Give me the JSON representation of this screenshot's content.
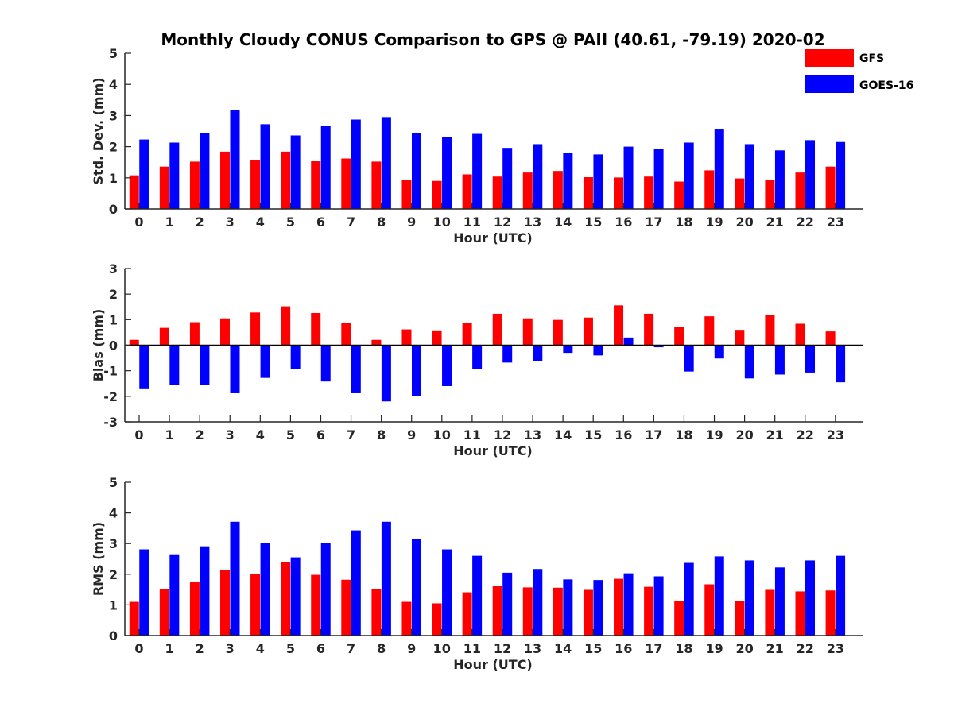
{
  "figure": {
    "title": "Monthly Cloudy CONUS Comparison to GPS @ PAII (40.61, -79.19) 2020-02"
  },
  "legend": {
    "placement": "top-right",
    "entries": [
      {
        "label": "GFS",
        "color": "#ff0000"
      },
      {
        "label": "GOES-16",
        "color": "#0000ff"
      }
    ]
  },
  "chart_data": [
    {
      "type": "bar",
      "xlabel": "Hour (UTC)",
      "ylabel": "Std. Dev. (mm)",
      "ylim": [
        0,
        5
      ],
      "yticks": [
        "0",
        "1",
        "2",
        "3",
        "4",
        "5"
      ],
      "categories": [
        "0",
        "1",
        "2",
        "3",
        "4",
        "5",
        "6",
        "7",
        "8",
        "9",
        "10",
        "11",
        "12",
        "13",
        "14",
        "15",
        "16",
        "17",
        "18",
        "19",
        "20",
        "21",
        "22",
        "23"
      ],
      "series": [
        {
          "name": "GFS",
          "color": "#ff0000",
          "values": [
            1.08,
            1.36,
            1.52,
            1.84,
            1.57,
            1.84,
            1.53,
            1.62,
            1.52,
            0.93,
            0.9,
            1.11,
            1.04,
            1.17,
            1.22,
            1.02,
            1.01,
            1.04,
            0.88,
            1.24,
            0.98,
            0.94,
            1.17,
            1.36
          ]
        },
        {
          "name": "GOES-16",
          "color": "#0000ff",
          "values": [
            2.23,
            2.13,
            2.43,
            3.18,
            2.72,
            2.36,
            2.67,
            2.87,
            2.95,
            2.43,
            2.31,
            2.41,
            1.96,
            2.08,
            1.8,
            1.75,
            2.0,
            1.93,
            2.13,
            2.55,
            2.08,
            1.88,
            2.21,
            2.15
          ]
        }
      ]
    },
    {
      "type": "bar",
      "xlabel": "Hour (UTC)",
      "ylabel": "Bias (mm)",
      "ylim": [
        -3,
        3
      ],
      "yticks": [
        "-3",
        "-2",
        "-1",
        "0",
        "1",
        "2",
        "3"
      ],
      "categories": [
        "0",
        "1",
        "2",
        "3",
        "4",
        "5",
        "6",
        "7",
        "8",
        "9",
        "10",
        "11",
        "12",
        "13",
        "14",
        "15",
        "16",
        "17",
        "18",
        "19",
        "20",
        "21",
        "22",
        "23"
      ],
      "series": [
        {
          "name": "GFS",
          "color": "#ff0000",
          "values": [
            0.21,
            0.68,
            0.9,
            1.05,
            1.28,
            1.52,
            1.26,
            0.86,
            0.21,
            0.62,
            0.55,
            0.87,
            1.23,
            1.05,
            0.99,
            1.08,
            1.56,
            1.23,
            0.71,
            1.13,
            0.57,
            1.18,
            0.84,
            0.54
          ]
        },
        {
          "name": "GOES-16",
          "color": "#0000ff",
          "values": [
            -1.72,
            -1.57,
            -1.57,
            -1.88,
            -1.28,
            -0.92,
            -1.42,
            -1.88,
            -2.2,
            -2.0,
            -1.6,
            -0.93,
            -0.68,
            -0.62,
            -0.3,
            -0.4,
            0.3,
            -0.08,
            -1.03,
            -0.52,
            -1.3,
            -1.15,
            -1.07,
            -1.45
          ]
        }
      ]
    },
    {
      "type": "bar",
      "xlabel": "Hour (UTC)",
      "ylabel": "RMS (mm)",
      "ylim": [
        0,
        5
      ],
      "yticks": [
        "0",
        "1",
        "2",
        "3",
        "4",
        "5"
      ],
      "categories": [
        "0",
        "1",
        "2",
        "3",
        "4",
        "5",
        "6",
        "7",
        "8",
        "9",
        "10",
        "11",
        "12",
        "13",
        "14",
        "15",
        "16",
        "17",
        "18",
        "19",
        "20",
        "21",
        "22",
        "23"
      ],
      "series": [
        {
          "name": "GFS",
          "color": "#ff0000",
          "values": [
            1.1,
            1.52,
            1.75,
            2.13,
            2.0,
            2.4,
            1.98,
            1.82,
            1.52,
            1.1,
            1.05,
            1.41,
            1.61,
            1.57,
            1.56,
            1.49,
            1.85,
            1.59,
            1.13,
            1.67,
            1.13,
            1.49,
            1.44,
            1.47
          ]
        },
        {
          "name": "GOES-16",
          "color": "#0000ff",
          "values": [
            2.81,
            2.65,
            2.91,
            3.71,
            3.01,
            2.55,
            3.03,
            3.43,
            3.71,
            3.16,
            2.81,
            2.6,
            2.05,
            2.17,
            1.83,
            1.81,
            2.03,
            1.93,
            2.37,
            2.58,
            2.45,
            2.22,
            2.45,
            2.6
          ]
        }
      ]
    }
  ]
}
